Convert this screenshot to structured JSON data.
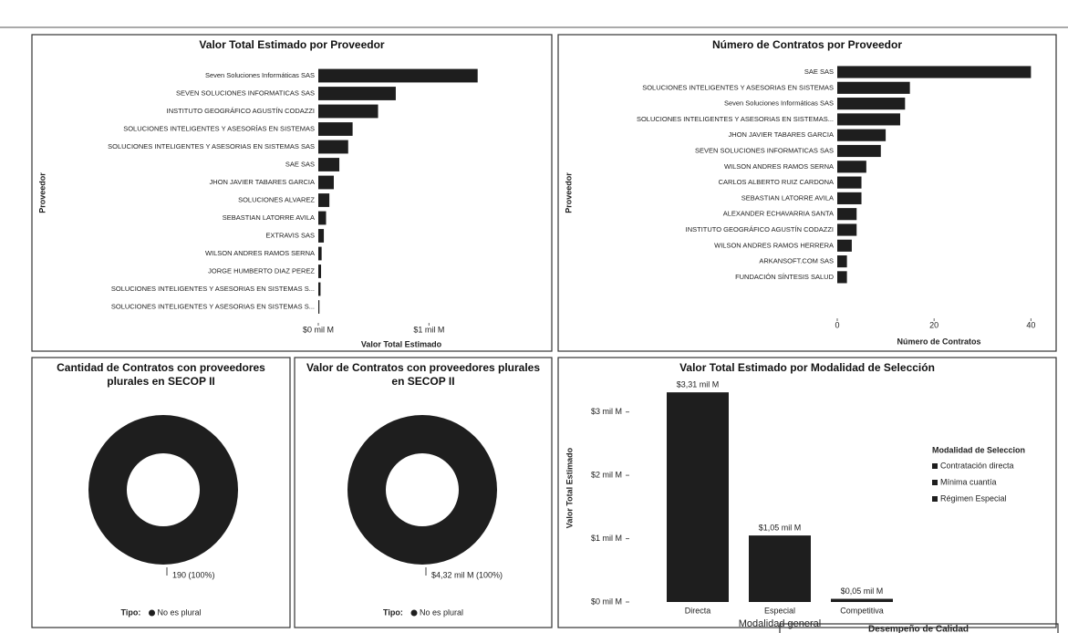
{
  "footer_panel_title": "Desempeño de Calidad",
  "chart_data": [
    {
      "type": "hbar",
      "title": "Valor Total Estimado por Proveedor",
      "x_label": "Valor Total Estimado",
      "y_label": "Proveedor",
      "categories": [
        "Seven Soluciones Informáticas SAS",
        "SEVEN SOLUCIONES INFORMATICAS SAS",
        "INSTITUTO GEOGRÁFICO AGUSTÍN CODAZZI",
        "SOLUCIONES INTELIGENTES Y ASESORÍAS EN SISTEMAS",
        "SOLUCIONES INTELIGENTES Y ASESORIAS EN SISTEMAS SAS",
        "SAE SAS",
        "JHON JAVIER TABARES GARCIA",
        "SOLUCIONES ALVAREZ",
        "SEBASTIAN LATORRE AVILA",
        "EXTRAVIS SAS",
        "WILSON ANDRES RAMOS SERNA",
        "JORGE HUMBERTO DIAZ PEREZ",
        "SOLUCIONES INTELIGENTES Y ASESORIAS EN SISTEMAS S...",
        "SOLUCIONES INTELIGENTES Y ASESORIAS EN SISTEMAS S..."
      ],
      "values": [
        1.44,
        0.7,
        0.54,
        0.31,
        0.27,
        0.19,
        0.14,
        0.1,
        0.07,
        0.05,
        0.03,
        0.025,
        0.02,
        0.01
      ],
      "color": "#1e1e1e",
      "xlim": [
        0,
        1.5
      ],
      "xticks": [
        {
          "value": 0,
          "label": "$0 mil M"
        },
        {
          "value": 1,
          "label": "$1 mil M"
        }
      ]
    },
    {
      "type": "hbar",
      "title": "Número de Contratos por Proveedor",
      "x_label": "Número de Contratos",
      "y_label": "Proveedor",
      "categories": [
        "SAE SAS",
        "SOLUCIONES INTELIGENTES Y ASESORIAS EN SISTEMAS",
        "Seven Soluciones Informáticas SAS",
        "SOLUCIONES INTELIGENTES Y ASESORIAS EN SISTEMAS...",
        "JHON JAVIER TABARES GARCIA",
        "SEVEN SOLUCIONES INFORMATICAS SAS",
        "WILSON ANDRES RAMOS SERNA",
        "CARLOS ALBERTO RUIZ CARDONA",
        "SEBASTIAN LATORRE AVILA",
        "ALEXANDER ECHAVARRIA SANTA",
        "INSTITUTO GEOGRÁFICO AGUSTÍN CODAZZI",
        "WILSON ANDRES RAMOS HERRERA",
        "ARKANSOFT.COM SAS",
        "FUNDACIÓN SÍNTESIS SALUD"
      ],
      "values": [
        40,
        15,
        14,
        13,
        10,
        9,
        6,
        5,
        5,
        4,
        4,
        3,
        2,
        2
      ],
      "color": "#1e1e1e",
      "xlim": [
        0,
        42
      ],
      "xticks": [
        0,
        20,
        40
      ]
    },
    {
      "type": "donut",
      "title": "Cantidad de Contratos con proveedores plurales en SECOP II",
      "categories": [
        "No es plural"
      ],
      "values": [
        190
      ],
      "value_labels": [
        "190 (100%)"
      ],
      "legend_title": "Tipo:",
      "colors": [
        "#1e1e1e"
      ]
    },
    {
      "type": "donut",
      "title": "Valor de Contratos con proveedores plurales en SECOP II",
      "categories": [
        "No es plural"
      ],
      "values": [
        4.32
      ],
      "value_labels": [
        "$4,32 mil M (100%)"
      ],
      "legend_title": "Tipo:",
      "colors": [
        "#1e1e1e"
      ]
    },
    {
      "type": "bar",
      "title": "Valor Total Estimado por Modalidad de Selección",
      "x_label": "Modalidad general",
      "y_label": "Valor Total Estimado",
      "categories": [
        "Directa",
        "Especial",
        "Competitiva"
      ],
      "values": [
        3.31,
        1.05,
        0.05
      ],
      "value_labels": [
        "$3,31 mil M",
        "$1,05 mil M",
        "$0,05 mil M"
      ],
      "color": "#1e1e1e",
      "ylim": [
        0,
        3.6
      ],
      "yticks": [
        {
          "value": 0,
          "label": "$0 mil M"
        },
        {
          "value": 1,
          "label": "$1 mil M"
        },
        {
          "value": 2,
          "label": "$2 mil M"
        },
        {
          "value": 3,
          "label": "$3 mil M"
        }
      ],
      "legend_title": "Modalidad de Seleccion",
      "legend": [
        "Contratación directa",
        "Mínima cuantía",
        "Régimen Especial"
      ]
    }
  ]
}
